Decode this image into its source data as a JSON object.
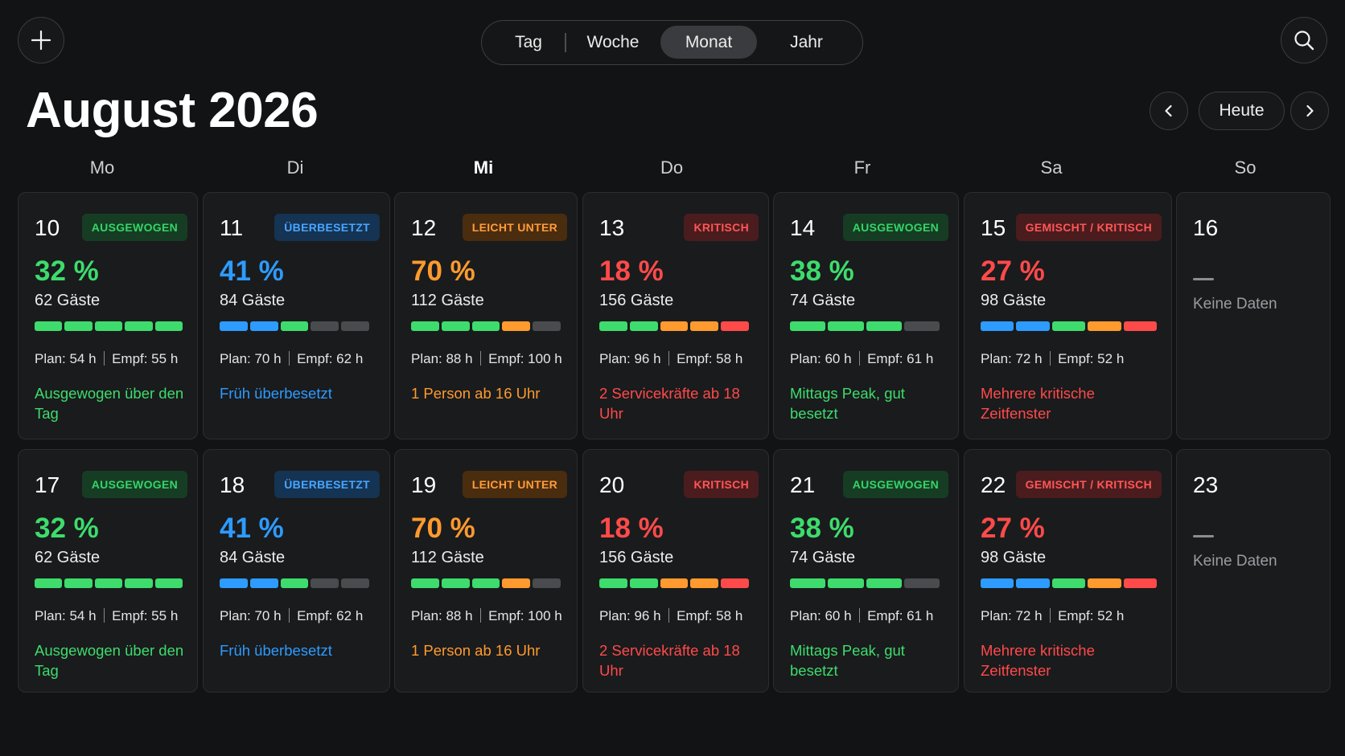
{
  "header": {
    "title": "August 2026",
    "view_tabs": [
      {
        "label": "Tag",
        "active": false
      },
      {
        "label": "Woche",
        "active": false
      },
      {
        "label": "Monat",
        "active": true
      },
      {
        "label": "Jahr",
        "active": false
      }
    ],
    "today_label": "Heute",
    "add_icon": "plus-icon",
    "search_icon": "search-icon",
    "prev_icon": "chevron-left-icon",
    "next_icon": "chevron-right-icon"
  },
  "weekdays": [
    "Mo",
    "Di",
    "Mi",
    "Do",
    "Fr",
    "Sa",
    "So"
  ],
  "colors": {
    "green": "#3ddc6c",
    "blue": "#2d9bff",
    "orange": "#ff9a2e",
    "red": "#ff4a4a",
    "gray": "#4a4b4e"
  },
  "weeks": [
    {
      "days": [
        {
          "day": "10",
          "badge": "AUSGEWOGEN",
          "status": "green",
          "percent": "32 %",
          "guests": "62 Gäste",
          "plan": "Plan: 54 h",
          "empf": "Empf: 55 h",
          "note": "Ausgewogen über den Tag",
          "bar": [
            "green",
            "green",
            "green",
            "green",
            "green"
          ]
        },
        {
          "day": "11",
          "badge": "ÜBERBESETZT",
          "status": "blue",
          "percent": "41 %",
          "guests": "84 Gäste",
          "plan": "Plan: 70 h",
          "empf": "Empf: 62 h",
          "note": "Früh überbesetzt",
          "bar": [
            "blue",
            "blue",
            "green",
            "gray",
            "gray"
          ]
        },
        {
          "day": "12",
          "badge": "LEICHT UNTER",
          "status": "orange",
          "percent": "70 %",
          "guests": "112 Gäste",
          "plan": "Plan: 88 h",
          "empf": "Empf: 100 h",
          "note": "1 Person ab 16 Uhr",
          "bar": [
            "green",
            "green",
            "green",
            "orange",
            "gray"
          ]
        },
        {
          "day": "13",
          "badge": "KRITISCH",
          "status": "red",
          "percent": "18 %",
          "guests": "156 Gäste",
          "plan": "Plan: 96 h",
          "empf": "Empf: 58 h",
          "note": "2 Servicekräfte ab 18 Uhr",
          "bar": [
            "green",
            "green",
            "orange",
            "orange",
            "red"
          ]
        },
        {
          "day": "14",
          "badge": "AUSGEWOGEN",
          "status": "green",
          "percent": "38 %",
          "guests": "74 Gäste",
          "plan": "Plan: 60 h",
          "empf": "Empf: 61 h",
          "note": "Mittags Peak, gut besetzt",
          "bar": [
            "green",
            "green",
            "green",
            "gray"
          ]
        },
        {
          "day": "15",
          "badge": "GEMISCHT / KRITISCH",
          "status": "red",
          "percent": "27 %",
          "guests": "98 Gäste",
          "plan": "Plan: 72 h",
          "empf": "Empf: 52 h",
          "note": "Mehrere kritische Zeitfenster",
          "bar": [
            "blue",
            "blue",
            "green",
            "orange",
            "red"
          ]
        },
        {
          "day": "16",
          "nodata": "Keine Daten"
        }
      ]
    },
    {
      "days": [
        {
          "day": "17",
          "badge": "AUSGEWOGEN",
          "status": "green",
          "percent": "32 %",
          "guests": "62 Gäste",
          "plan": "Plan: 54 h",
          "empf": "Empf: 55 h",
          "note": "Ausgewogen über den Tag",
          "bar": [
            "green",
            "green",
            "green",
            "green",
            "green"
          ]
        },
        {
          "day": "18",
          "badge": "ÜBERBESETZT",
          "status": "blue",
          "percent": "41 %",
          "guests": "84 Gäste",
          "plan": "Plan: 70 h",
          "empf": "Empf: 62 h",
          "note": "Früh überbesetzt",
          "bar": [
            "blue",
            "blue",
            "green",
            "gray",
            "gray"
          ]
        },
        {
          "day": "19",
          "badge": "LEICHT UNTER",
          "status": "orange",
          "percent": "70 %",
          "guests": "112 Gäste",
          "plan": "Plan: 88 h",
          "empf": "Empf: 100 h",
          "note": "1 Person ab 16 Uhr",
          "bar": [
            "green",
            "green",
            "green",
            "orange",
            "gray"
          ]
        },
        {
          "day": "20",
          "badge": "KRITISCH",
          "status": "red",
          "percent": "18 %",
          "guests": "156 Gäste",
          "plan": "Plan: 96 h",
          "empf": "Empf: 58 h",
          "note": "2 Servicekräfte ab 18 Uhr",
          "bar": [
            "green",
            "green",
            "orange",
            "orange",
            "red"
          ]
        },
        {
          "day": "21",
          "badge": "AUSGEWOGEN",
          "status": "green",
          "percent": "38 %",
          "guests": "74 Gäste",
          "plan": "Plan: 60 h",
          "empf": "Empf: 61 h",
          "note": "Mittags Peak, gut besetzt",
          "bar": [
            "green",
            "green",
            "green",
            "gray"
          ]
        },
        {
          "day": "22",
          "badge": "GEMISCHT / KRITISCH",
          "status": "red",
          "percent": "27 %",
          "guests": "98 Gäste",
          "plan": "Plan: 72 h",
          "empf": "Empf: 52 h",
          "note": "Mehrere kritische Zeitfenster",
          "bar": [
            "blue",
            "blue",
            "green",
            "orange",
            "red"
          ]
        },
        {
          "day": "23",
          "nodata": "Keine Daten"
        }
      ]
    }
  ]
}
